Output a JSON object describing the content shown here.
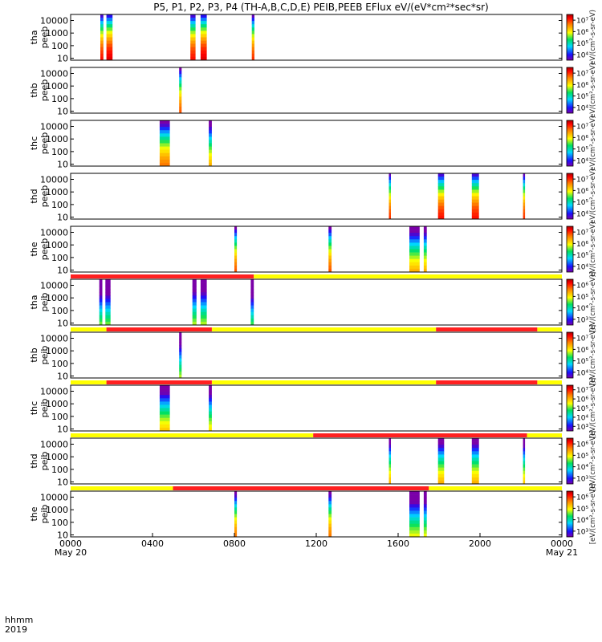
{
  "chart_data": {
    "type": "heatmap",
    "title": "P5, P1, P2, P3, P4 (TH-A,B,C,D,E) PEIB,PEEB EFlux eV/(eV*cm²*sec*sr)",
    "footer": {
      "row1": "hhmm",
      "row2": "2019"
    },
    "colorbar_label_eeb": "eV/(cm²-s-sr-eV)",
    "colorbar_label_eib": "[eV/(cm²-s-sr-eV)]",
    "time_ticks": [
      {
        "t": 0,
        "hhmm": "0000",
        "date": "May 20"
      },
      {
        "t": 4,
        "hhmm": "0400",
        "date": ""
      },
      {
        "t": 8,
        "hhmm": "0800",
        "date": ""
      },
      {
        "t": 12,
        "hhmm": "1200",
        "date": ""
      },
      {
        "t": 16,
        "hhmm": "1600",
        "date": ""
      },
      {
        "t": 20,
        "hhmm": "2000",
        "date": ""
      },
      {
        "t": 24,
        "hhmm": "0000",
        "date": "May 21"
      }
    ],
    "xlim_hours": [
      0,
      24
    ],
    "y_scale": "log",
    "ylim_eV": [
      7,
      30000
    ],
    "y_ticks": [
      "10",
      "100",
      "1000",
      "10000"
    ],
    "panels": [
      {
        "probe": "tha",
        "product": "peeb",
        "cbar": [
          "10⁴",
          "10⁵",
          "10⁶",
          "10⁷"
        ],
        "cmin": 3.5,
        "cmax": 7.5,
        "bursts": [
          {
            "t0": 1.45,
            "t1": 1.6,
            "base": 0.85
          },
          {
            "t0": 1.75,
            "t1": 2.05,
            "base": 0.9
          },
          {
            "t0": 5.85,
            "t1": 6.1,
            "base": 0.85
          },
          {
            "t0": 6.35,
            "t1": 6.65,
            "base": 0.9
          },
          {
            "t0": 8.85,
            "t1": 8.98,
            "base": 0.8
          }
        ]
      },
      {
        "probe": "thb",
        "product": "peeb",
        "cbar": [
          "10⁴",
          "10⁵",
          "10⁶",
          "10⁷"
        ],
        "cmin": 3.5,
        "cmax": 7.5,
        "bursts": [
          {
            "t0": 5.3,
            "t1": 5.42,
            "base": 0.75
          }
        ]
      },
      {
        "probe": "thc",
        "product": "peeb",
        "cbar": [
          "10⁴",
          "10⁵",
          "10⁶",
          "10⁷"
        ],
        "cmin": 3.5,
        "cmax": 7.5,
        "bursts": [
          {
            "t0": 4.35,
            "t1": 4.85,
            "base": 0.7
          },
          {
            "t0": 6.75,
            "t1": 6.9,
            "base": 0.6
          }
        ]
      },
      {
        "probe": "thd",
        "product": "peeb",
        "cbar": [
          "10⁴",
          "10⁵",
          "10⁶",
          "10⁷"
        ],
        "cmin": 3.5,
        "cmax": 7.5,
        "bursts": [
          {
            "t0": 15.55,
            "t1": 15.65,
            "base": 0.8
          },
          {
            "t0": 17.95,
            "t1": 18.25,
            "base": 0.85
          },
          {
            "t0": 19.6,
            "t1": 19.95,
            "base": 0.85
          },
          {
            "t0": 22.1,
            "t1": 22.2,
            "base": 0.8
          }
        ]
      },
      {
        "probe": "the",
        "product": "peeb",
        "cbar": [
          "10⁴",
          "10⁵",
          "10⁶",
          "10⁷"
        ],
        "cmin": 3.5,
        "cmax": 7.5,
        "bursts": [
          {
            "t0": 8.0,
            "t1": 8.12,
            "base": 0.75
          },
          {
            "t0": 12.6,
            "t1": 12.75,
            "base": 0.75
          },
          {
            "t0": 16.55,
            "t1": 17.05,
            "base": 0.6
          },
          {
            "t0": 17.25,
            "t1": 17.4,
            "base": 0.6
          }
        ]
      },
      {
        "probe": "tha",
        "product": "peib",
        "cbar": [
          "10³",
          "10⁴",
          "10⁵",
          "10⁶"
        ],
        "cmin": 2.5,
        "cmax": 6.5,
        "bursts": [
          {
            "t0": 1.4,
            "t1": 1.55,
            "base": 0.35
          },
          {
            "t0": 1.7,
            "t1": 1.95,
            "base": 0.35
          },
          {
            "t0": 5.95,
            "t1": 6.15,
            "base": 0.4
          },
          {
            "t0": 6.35,
            "t1": 6.65,
            "base": 0.4
          },
          {
            "t0": 8.8,
            "t1": 8.95,
            "base": 0.3
          }
        ]
      },
      {
        "probe": "thb",
        "product": "peib",
        "cbar": [
          "10⁴",
          "10⁵",
          "10⁶",
          "10⁷"
        ],
        "cmin": 3.5,
        "cmax": 7.5,
        "bursts": [
          {
            "t0": 5.3,
            "t1": 5.42,
            "base": 0.4
          }
        ]
      },
      {
        "probe": "thc",
        "product": "peib",
        "cbar": [
          "10³",
          "10⁴",
          "10⁵",
          "10⁶",
          "10⁷"
        ],
        "cmin": 2.5,
        "cmax": 7.5,
        "bursts": [
          {
            "t0": 4.35,
            "t1": 4.85,
            "base": 0.55
          },
          {
            "t0": 6.75,
            "t1": 6.9,
            "base": 0.5
          }
        ]
      },
      {
        "probe": "thd",
        "product": "peib",
        "cbar": [
          "10³",
          "10⁴",
          "10⁵",
          "10⁶"
        ],
        "cmin": 2.5,
        "cmax": 6.5,
        "bursts": [
          {
            "t0": 15.55,
            "t1": 15.65,
            "base": 0.6
          },
          {
            "t0": 17.95,
            "t1": 18.25,
            "base": 0.6
          },
          {
            "t0": 19.6,
            "t1": 19.95,
            "base": 0.6
          },
          {
            "t0": 22.1,
            "t1": 22.2,
            "base": 0.55
          }
        ]
      },
      {
        "probe": "the",
        "product": "peib",
        "cbar": [
          "10³",
          "10⁴",
          "10⁵",
          "10⁶"
        ],
        "cmin": 2.5,
        "cmax": 6.5,
        "bursts": [
          {
            "t0": 8.0,
            "t1": 8.12,
            "base": 0.7
          },
          {
            "t0": 12.6,
            "t1": 12.75,
            "base": 0.7
          },
          {
            "t0": 16.55,
            "t1": 17.05,
            "base": 0.45
          },
          {
            "t0": 17.25,
            "t1": 17.4,
            "base": 0.45
          }
        ]
      }
    ],
    "mode_bars": [
      {
        "above_panel": 5,
        "segments": [
          {
            "t0": 0,
            "t1": 8.95,
            "color": "#ff2020"
          },
          {
            "t0": 8.95,
            "t1": 24,
            "color": "#ffff00"
          }
        ]
      },
      {
        "above_panel": 6,
        "segments": [
          {
            "t0": 0,
            "t1": 1.75,
            "color": "#ffff00"
          },
          {
            "t0": 1.75,
            "t1": 6.9,
            "color": "#ff2020"
          },
          {
            "t0": 6.9,
            "t1": 17.85,
            "color": "#ffff00"
          },
          {
            "t0": 17.85,
            "t1": 22.8,
            "color": "#ff2020"
          },
          {
            "t0": 22.8,
            "t1": 24,
            "color": "#ffff00"
          }
        ]
      },
      {
        "above_panel": 7,
        "segments": [
          {
            "t0": 0,
            "t1": 1.75,
            "color": "#ffff00"
          },
          {
            "t0": 1.75,
            "t1": 6.9,
            "color": "#ff2020"
          },
          {
            "t0": 6.9,
            "t1": 17.85,
            "color": "#ffff00"
          },
          {
            "t0": 17.85,
            "t1": 22.8,
            "color": "#ff2020"
          },
          {
            "t0": 22.8,
            "t1": 24,
            "color": "#ffff00"
          }
        ]
      },
      {
        "above_panel": 8,
        "segments": [
          {
            "t0": 0,
            "t1": 11.85,
            "color": "#ffff00"
          },
          {
            "t0": 11.85,
            "t1": 22.3,
            "color": "#ff2020"
          },
          {
            "t0": 22.3,
            "t1": 24,
            "color": "#ffff00"
          }
        ]
      },
      {
        "above_panel": 9,
        "segments": [
          {
            "t0": 0,
            "t1": 5.0,
            "color": "#ffff00"
          },
          {
            "t0": 5.0,
            "t1": 17.5,
            "color": "#ff2020"
          },
          {
            "t0": 17.5,
            "t1": 24,
            "color": "#ffff00"
          }
        ]
      }
    ]
  }
}
